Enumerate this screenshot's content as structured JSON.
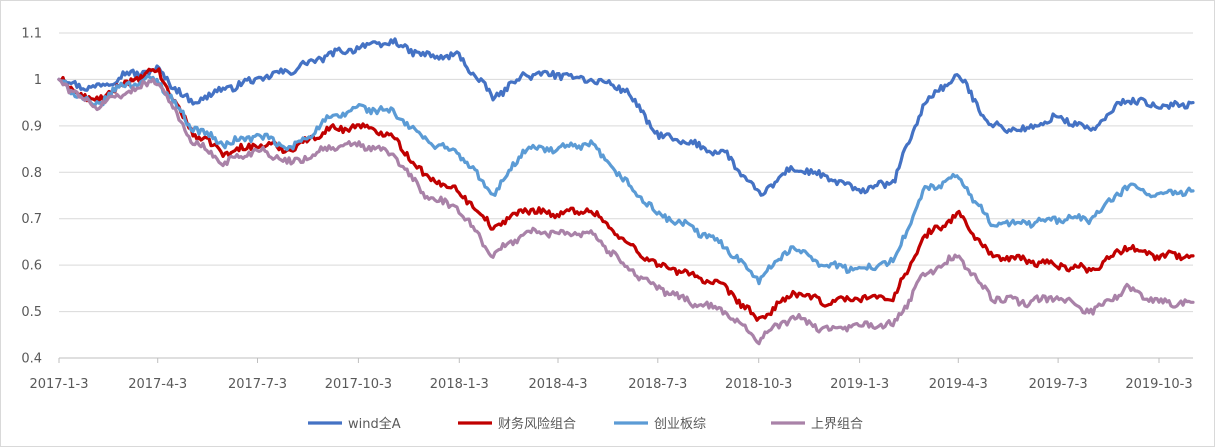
{
  "chart_data": {
    "type": "line",
    "title": "",
    "xlabel": "",
    "ylabel": "",
    "ylim": [
      0.4,
      1.1
    ],
    "y_ticks": [
      "0.4",
      "0.5",
      "0.6",
      "0.7",
      "0.8",
      "0.9",
      "1",
      "1.1"
    ],
    "grid": "horizontal",
    "legend_position": "bottom",
    "x_ticks": [
      "2017-1-3",
      "2017-4-3",
      "2017-7-3",
      "2017-10-3",
      "2018-1-3",
      "2018-4-3",
      "2018-7-3",
      "2018-10-3",
      "2019-1-3",
      "2019-4-3",
      "2019-7-3",
      "2019-10-3"
    ],
    "x_dates": [
      "2017-01-03",
      "2017-02-03",
      "2017-03-03",
      "2017-04-03",
      "2017-05-03",
      "2017-06-03",
      "2017-07-03",
      "2017-08-03",
      "2017-09-03",
      "2017-10-03",
      "2017-11-03",
      "2017-12-03",
      "2018-01-03",
      "2018-02-03",
      "2018-03-03",
      "2018-04-03",
      "2018-05-03",
      "2018-06-03",
      "2018-07-03",
      "2018-08-03",
      "2018-09-03",
      "2018-10-03",
      "2018-11-03",
      "2018-12-03",
      "2019-01-03",
      "2019-02-03",
      "2019-03-03",
      "2019-04-03",
      "2019-05-03",
      "2019-06-03",
      "2019-07-03",
      "2019-08-03",
      "2019-09-03",
      "2019-10-03",
      "2019-11-03"
    ],
    "series": [
      {
        "name": "wind全A",
        "color": "#4472C4",
        "values": [
          1.0,
          0.98,
          1.01,
          1.02,
          0.95,
          0.98,
          1.0,
          1.02,
          1.05,
          1.07,
          1.08,
          1.05,
          1.05,
          0.96,
          1.01,
          1.01,
          1.0,
          0.98,
          0.88,
          0.86,
          0.84,
          0.75,
          0.81,
          0.79,
          0.76,
          0.78,
          0.95,
          1.01,
          0.9,
          0.89,
          0.92,
          0.89,
          0.96,
          0.94,
          0.95
        ]
      },
      {
        "name": "财务风险组合",
        "color": "#C00000",
        "values": [
          1.0,
          0.95,
          0.99,
          1.02,
          0.89,
          0.84,
          0.86,
          0.85,
          0.89,
          0.9,
          0.88,
          0.79,
          0.76,
          0.68,
          0.72,
          0.71,
          0.72,
          0.65,
          0.6,
          0.58,
          0.55,
          0.48,
          0.54,
          0.52,
          0.53,
          0.53,
          0.66,
          0.71,
          0.62,
          0.61,
          0.6,
          0.59,
          0.64,
          0.62,
          0.62
        ]
      },
      {
        "name": "创业板综",
        "color": "#5B9BD5",
        "values": [
          1.0,
          0.94,
          0.99,
          1.0,
          0.9,
          0.86,
          0.88,
          0.85,
          0.91,
          0.94,
          0.93,
          0.87,
          0.84,
          0.75,
          0.85,
          0.85,
          0.86,
          0.78,
          0.71,
          0.68,
          0.64,
          0.57,
          0.64,
          0.6,
          0.59,
          0.61,
          0.76,
          0.79,
          0.69,
          0.69,
          0.7,
          0.7,
          0.77,
          0.75,
          0.76
        ]
      },
      {
        "name": "上界组合",
        "color": "#A982A8",
        "values": [
          1.0,
          0.94,
          0.97,
          1.0,
          0.87,
          0.82,
          0.85,
          0.82,
          0.85,
          0.86,
          0.84,
          0.75,
          0.72,
          0.62,
          0.67,
          0.67,
          0.67,
          0.6,
          0.55,
          0.52,
          0.5,
          0.44,
          0.49,
          0.46,
          0.47,
          0.47,
          0.58,
          0.62,
          0.53,
          0.52,
          0.53,
          0.5,
          0.55,
          0.52,
          0.52
        ]
      }
    ]
  }
}
